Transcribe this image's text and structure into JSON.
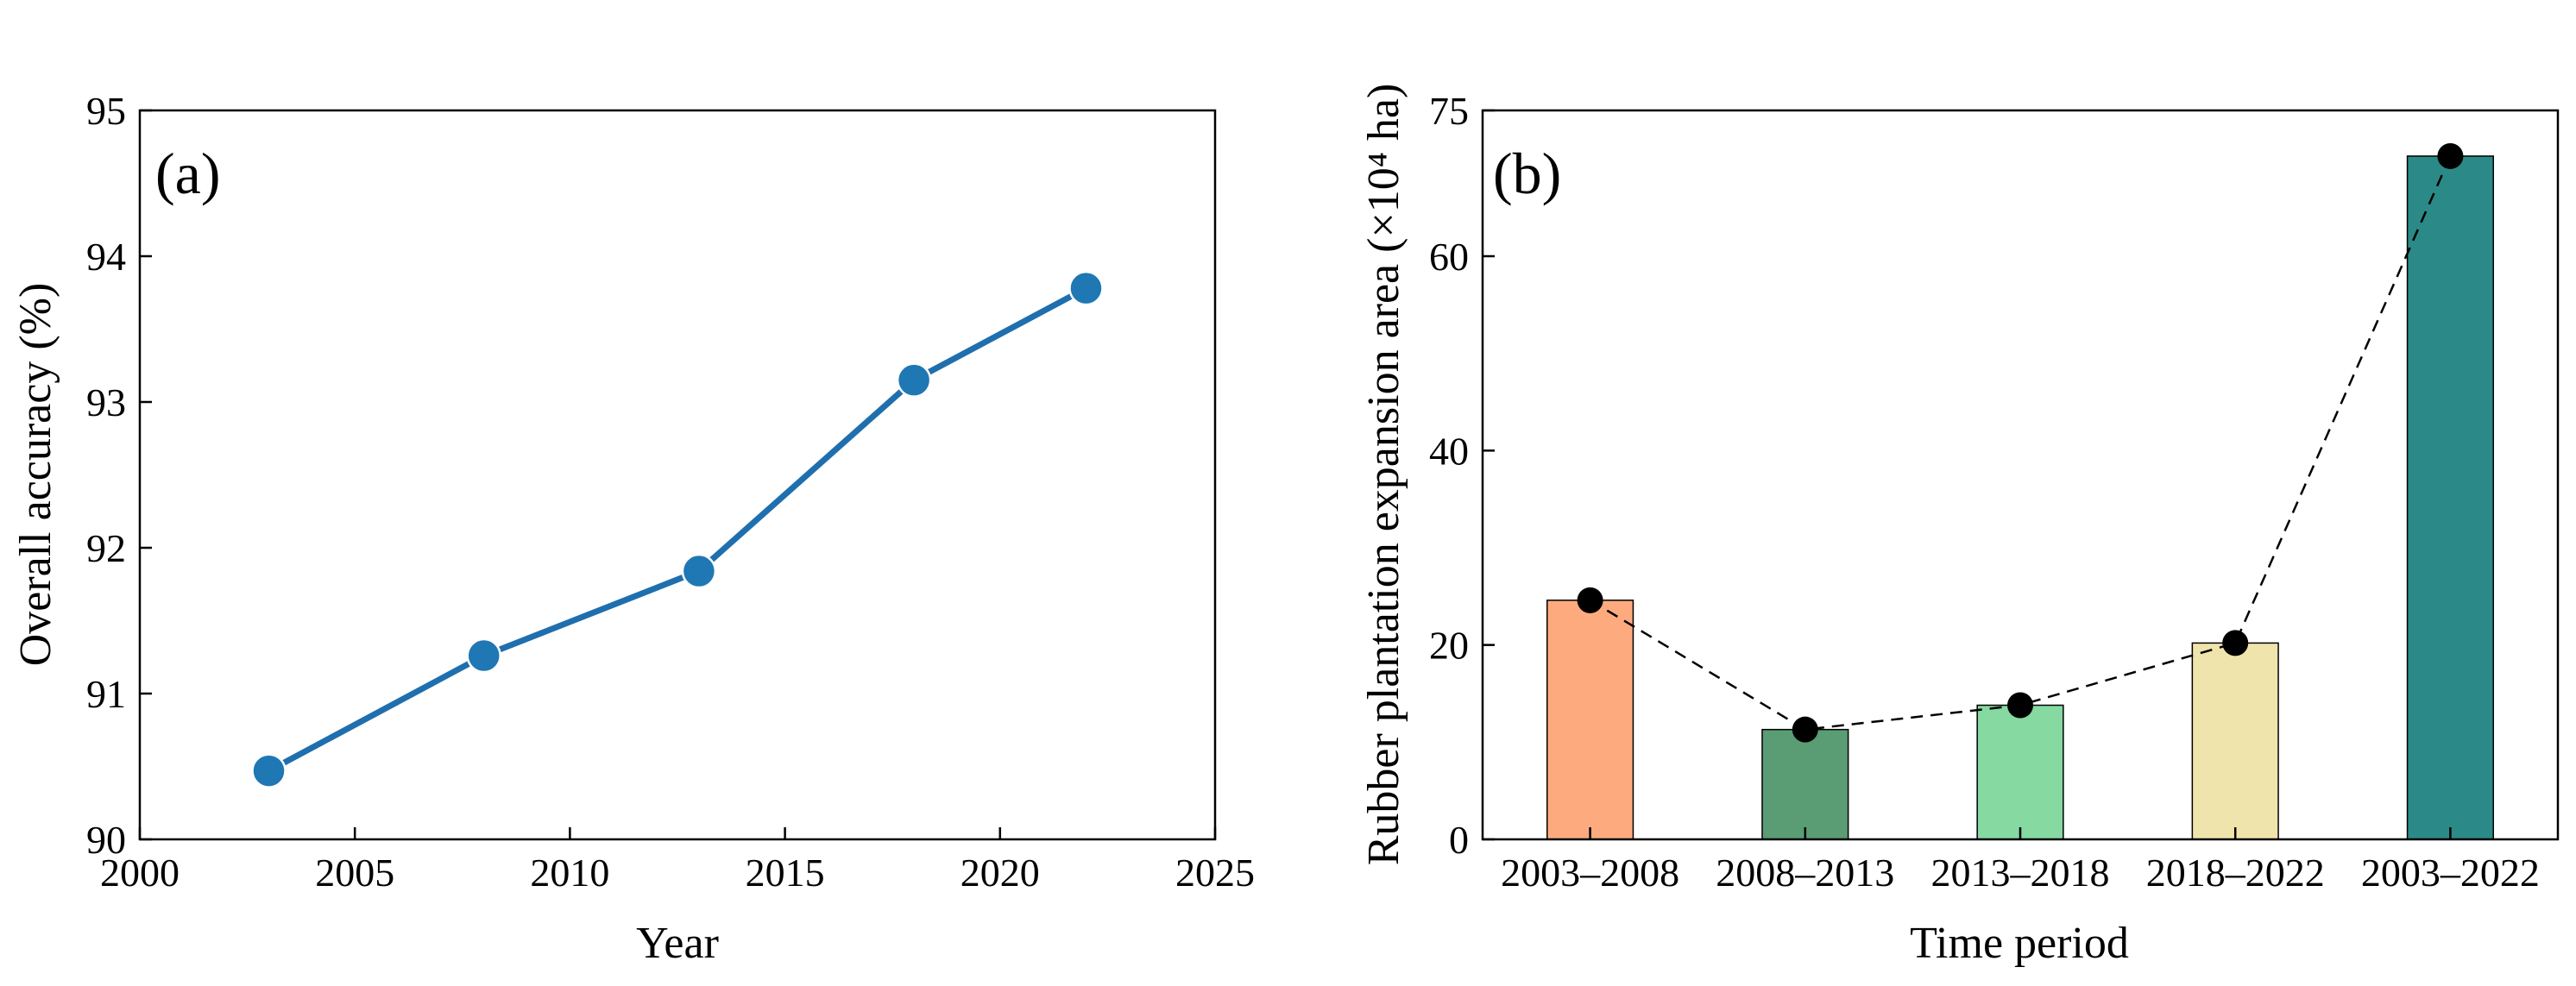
{
  "chart_data": [
    {
      "type": "line",
      "panel_label": "(a)",
      "x": [
        2003,
        2008,
        2013,
        2018,
        2022
      ],
      "values": [
        90.47,
        91.26,
        91.84,
        93.15,
        93.78
      ],
      "xlabel": "Year",
      "ylabel": "Overall accuracy (%)",
      "xlim": [
        2000,
        2025
      ],
      "ylim": [
        90,
        95
      ],
      "xticks": [
        "2000",
        "2005",
        "2010",
        "2015",
        "2020",
        "2025"
      ],
      "yticks": [
        "90",
        "91",
        "92",
        "93",
        "94",
        "95"
      ],
      "grid": false,
      "line_color": "#1f6fae",
      "marker_color": "#1f77b4"
    },
    {
      "type": "bar",
      "panel_label": "(b)",
      "categories": [
        "2003–2008",
        "2008–2013",
        "2013–2018",
        "2018–2022",
        "2003–2022"
      ],
      "values": [
        24.6,
        11.3,
        13.8,
        20.2,
        70.3
      ],
      "colors": [
        "#fdab7e",
        "#5a9c74",
        "#85d9a1",
        "#f0e4ad",
        "#2b8a87"
      ],
      "overlay_line": {
        "style": "dashed",
        "marker": "circle",
        "color": "#000000"
      },
      "xlabel": "Time period",
      "ylabel": "Rubber plantation expansion area (×10⁴ ha)",
      "ylim": [
        0,
        75
      ],
      "yticks": [
        "0",
        "20",
        "40",
        "60",
        "75"
      ],
      "grid": false
    }
  ]
}
